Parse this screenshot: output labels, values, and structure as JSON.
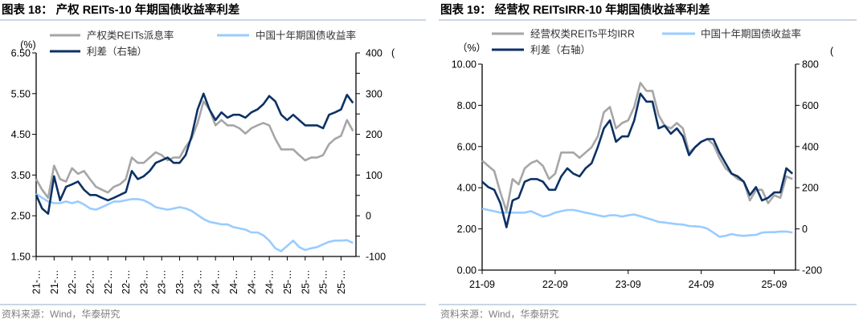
{
  "colors": {
    "gray": "#a6a6a6",
    "light_blue": "#99ccff",
    "dark_blue": "#0c3164",
    "divider": "#b9c9d9"
  },
  "chart_data": [
    {
      "type": "line",
      "title": "图表 18：   产权 REITs-10 年期国债收益率利差",
      "source": "资料来源：Wind，华泰研究",
      "left_unit": "(%)",
      "right_unit": "(",
      "ylim_left": [
        1.5,
        6.5
      ],
      "ylim_right": [
        -100,
        400
      ],
      "left_tick_labels": [
        "6.50",
        "5.50",
        "4.50",
        "3.50",
        "2.50",
        "1.50"
      ],
      "right_tick_labels": [
        "400",
        "300",
        "200",
        "100",
        "0",
        "-100"
      ],
      "x_tick_labels": [
        "21-…",
        "21-…",
        "22-…",
        "22-…",
        "22-…",
        "22-…",
        "23-…",
        "23-…",
        "23-…",
        "23-…",
        "24-…",
        "24-…",
        "24-…",
        "24-…",
        "25-…",
        "25-…",
        "25-…",
        "25-…"
      ],
      "grid": false,
      "legend_position": "top",
      "x": [
        "2021-07",
        "2021-08",
        "2021-09",
        "2021-10",
        "2021-11",
        "2021-12",
        "2022-01",
        "2022-02",
        "2022-03",
        "2022-04",
        "2022-05",
        "2022-06",
        "2022-07",
        "2022-08",
        "2022-09",
        "2022-10",
        "2022-11",
        "2022-12",
        "2023-01",
        "2023-02",
        "2023-03",
        "2023-04",
        "2023-05",
        "2023-06",
        "2023-07",
        "2023-08",
        "2023-09",
        "2023-10",
        "2023-11",
        "2023-12",
        "2024-01",
        "2024-02",
        "2024-03",
        "2024-04",
        "2024-05",
        "2024-06",
        "2024-07",
        "2024-08",
        "2024-09",
        "2024-10",
        "2024-11",
        "2024-12",
        "2025-01",
        "2025-02",
        "2025-03",
        "2025-04",
        "2025-05",
        "2025-06",
        "2025-07",
        "2025-08",
        "2025-09",
        "2025-10",
        "2025-11",
        "2025-12"
      ],
      "series": [
        {
          "name": "产权类REITs派息率",
          "axis": "left",
          "color": "#a6a6a6",
          "values": [
            3.4,
            3.14,
            2.94,
            3.73,
            3.4,
            3.34,
            3.67,
            3.53,
            3.6,
            3.4,
            3.21,
            3.14,
            3.07,
            3.21,
            3.27,
            3.4,
            3.93,
            3.8,
            3.8,
            3.93,
            4.06,
            3.99,
            3.86,
            3.93,
            3.93,
            4.19,
            4.39,
            4.78,
            5.31,
            5.11,
            4.72,
            4.85,
            4.72,
            4.72,
            4.65,
            4.52,
            4.65,
            4.72,
            4.78,
            4.72,
            4.39,
            4.13,
            4.13,
            4.13,
            3.99,
            3.86,
            3.93,
            3.93,
            3.99,
            4.26,
            4.39,
            4.46,
            4.85,
            4.58
          ]
        },
        {
          "name": "中国十年期国债收益率",
          "axis": "left",
          "color": "#99ccff",
          "values": [
            3.04,
            2.94,
            2.85,
            2.81,
            2.81,
            2.85,
            2.81,
            2.85,
            2.78,
            2.68,
            2.65,
            2.71,
            2.78,
            2.85,
            2.85,
            2.88,
            2.91,
            2.91,
            2.88,
            2.81,
            2.71,
            2.68,
            2.65,
            2.68,
            2.71,
            2.68,
            2.62,
            2.52,
            2.42,
            2.35,
            2.32,
            2.29,
            2.29,
            2.22,
            2.19,
            2.16,
            2.09,
            2.09,
            2.02,
            1.89,
            1.7,
            1.63,
            1.76,
            1.89,
            1.73,
            1.66,
            1.7,
            1.73,
            1.8,
            1.86,
            1.89,
            1.89,
            1.9,
            1.83
          ]
        },
        {
          "name": "利差（右轴）",
          "axis": "right",
          "color": "#0c3164",
          "values": [
            51,
            18,
            5,
            97,
            38,
            71,
            77,
            84,
            64,
            51,
            51,
            44,
            38,
            44,
            51,
            58,
            110,
            90,
            97,
            110,
            130,
            136,
            143,
            130,
            130,
            149,
            195,
            261,
            300,
            261,
            235,
            254,
            241,
            248,
            248,
            241,
            254,
            261,
            274,
            294,
            281,
            248,
            235,
            248,
            235,
            222,
            222,
            222,
            215,
            248,
            254,
            261,
            297,
            277
          ]
        }
      ]
    },
    {
      "type": "line",
      "title": "图表 19：   经营权 REITsIRR-10 年期国债收益率利差",
      "source": "资料来源：Wind，华泰研究",
      "left_unit": "（%）",
      "right_unit": "(",
      "ylim_left": [
        0,
        10
      ],
      "ylim_right": [
        -200,
        800
      ],
      "left_tick_labels": [
        "10.00",
        "8.00",
        "6.00",
        "4.00",
        "2.00",
        "0.00"
      ],
      "right_tick_labels": [
        "800",
        "600",
        "400",
        "200",
        "0",
        "-200"
      ],
      "x_tick_labels": [
        "21-09",
        "22-09",
        "23-09",
        "24-09",
        "25-09"
      ],
      "grid": false,
      "legend_position": "top",
      "x": [
        "2021-09",
        "2021-10",
        "2021-11",
        "2021-12",
        "2022-01",
        "2022-02",
        "2022-03",
        "2022-04",
        "2022-05",
        "2022-06",
        "2022-07",
        "2022-08",
        "2022-09",
        "2022-10",
        "2022-11",
        "2022-12",
        "2023-01",
        "2023-02",
        "2023-03",
        "2023-04",
        "2023-05",
        "2023-06",
        "2023-07",
        "2023-08",
        "2023-09",
        "2023-10",
        "2023-11",
        "2023-12",
        "2024-01",
        "2024-02",
        "2024-03",
        "2024-04",
        "2024-05",
        "2024-06",
        "2024-07",
        "2024-08",
        "2024-09",
        "2024-10",
        "2024-11",
        "2024-12",
        "2025-01",
        "2025-02",
        "2025-03",
        "2025-04",
        "2025-05",
        "2025-06",
        "2025-07",
        "2025-08",
        "2025-09",
        "2025-10",
        "2025-11",
        "2025-12"
      ],
      "series": [
        {
          "name": "经营权类REITs平均IRR",
          "axis": "left",
          "color": "#a6a6a6",
          "values": [
            5.32,
            5.06,
            4.81,
            3.77,
            2.86,
            4.42,
            4.16,
            4.94,
            5.19,
            5.32,
            5.06,
            4.42,
            4.68,
            5.71,
            5.71,
            5.71,
            5.45,
            5.71,
            5.97,
            6.49,
            7.66,
            7.92,
            6.88,
            7.14,
            7.27,
            7.92,
            9.09,
            8.7,
            8.7,
            7.53,
            7.01,
            6.88,
            7.14,
            6.88,
            5.71,
            5.97,
            6.23,
            6.36,
            6.1,
            5.45,
            4.94,
            4.68,
            4.42,
            4.29,
            3.38,
            3.9,
            3.9,
            3.25,
            3.64,
            3.51,
            4.55,
            4.42
          ]
        },
        {
          "name": "中国十年期国债收益率",
          "axis": "left",
          "color": "#99ccff",
          "values": [
            2.99,
            2.92,
            2.86,
            2.79,
            2.79,
            2.79,
            2.79,
            2.79,
            2.86,
            2.73,
            2.6,
            2.66,
            2.79,
            2.86,
            2.92,
            2.92,
            2.86,
            2.79,
            2.73,
            2.66,
            2.6,
            2.66,
            2.66,
            2.6,
            2.66,
            2.7,
            2.62,
            2.53,
            2.44,
            2.34,
            2.31,
            2.27,
            2.23,
            2.21,
            2.14,
            2.13,
            2.1,
            2.01,
            1.82,
            1.62,
            1.66,
            1.75,
            1.69,
            1.66,
            1.69,
            1.71,
            1.82,
            1.84,
            1.84,
            1.87,
            1.87,
            1.82
          ]
        },
        {
          "name": "利差（右轴）",
          "axis": "right",
          "color": "#0c3164",
          "values": [
            229,
            203,
            190,
            125,
            8,
            138,
            151,
            229,
            242,
            242,
            229,
            190,
            190,
            255,
            294,
            268,
            255,
            294,
            319,
            397,
            488,
            527,
            423,
            449,
            449,
            527,
            657,
            618,
            618,
            488,
            501,
            462,
            488,
            449,
            358,
            397,
            423,
            436,
            436,
            371,
            319,
            268,
            255,
            229,
            164,
            203,
            138,
            151,
            177,
            177,
            294,
            268
          ]
        }
      ]
    }
  ]
}
